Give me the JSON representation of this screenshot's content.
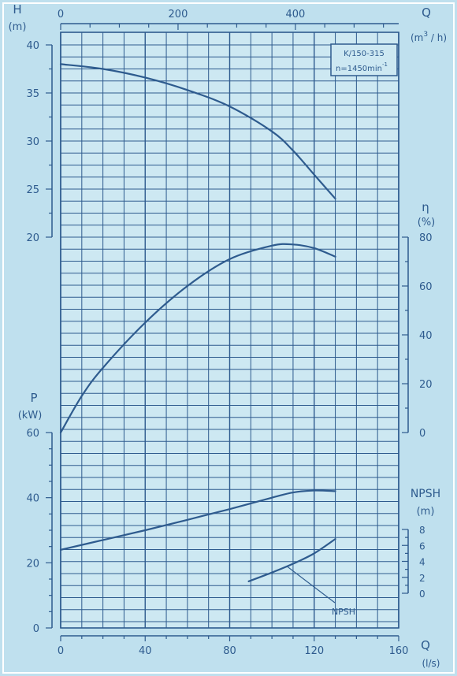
{
  "chart_data": {
    "type": "line",
    "model_label": "K/150-315",
    "speed_label": "n=1450min",
    "speed_exponent": "-1",
    "x_bottom": {
      "label": "Q",
      "unit": "(l/s)",
      "range": [
        0,
        160
      ],
      "ticks": [
        0,
        40,
        80,
        120,
        160
      ]
    },
    "x_top": {
      "label": "Q",
      "unit_prefix": "(m",
      "unit_exp": "3",
      "unit_suffix": "/ h)",
      "ticks": [
        0,
        200,
        400
      ]
    },
    "axes": {
      "head": {
        "label": "H",
        "unit": "(m)",
        "range": [
          20,
          40
        ],
        "ticks": [
          20,
          25,
          30,
          35,
          40
        ]
      },
      "efficiency": {
        "label": "η",
        "unit": "(%)",
        "range": [
          0,
          80
        ],
        "ticks": [
          0,
          20,
          40,
          60,
          80
        ]
      },
      "power": {
        "label": "P",
        "unit": "(kW)",
        "range": [
          0,
          60
        ],
        "ticks": [
          0,
          20,
          40,
          60
        ]
      },
      "npsh": {
        "label": "NPSH",
        "unit": "(m)",
        "range": [
          0,
          8
        ],
        "ticks": [
          0,
          2,
          4,
          6,
          8
        ]
      }
    },
    "grid": true,
    "series": [
      {
        "id": "head",
        "x": [
          0,
          20,
          40,
          60,
          80,
          100,
          110,
          120,
          130
        ],
        "y": [
          38,
          37.5,
          36.6,
          35.3,
          33.6,
          31,
          29,
          26.5,
          24
        ]
      },
      {
        "id": "efficiency",
        "x": [
          0,
          10,
          20,
          40,
          60,
          80,
          100,
          110,
          120,
          130
        ],
        "y": [
          0,
          15,
          26.5,
          45,
          60,
          71,
          76.5,
          77,
          75.5,
          72
        ]
      },
      {
        "id": "power",
        "x": [
          0,
          20,
          40,
          60,
          80,
          100,
          110,
          120,
          130
        ],
        "y": [
          24,
          27,
          30,
          33.2,
          36.5,
          40,
          41.6,
          42.2,
          42
        ]
      },
      {
        "id": "npsh",
        "name": "NPSH",
        "x": [
          89,
          100,
          110,
          120,
          130
        ],
        "y": [
          1.5,
          2.6,
          3.7,
          5,
          6.8
        ]
      }
    ]
  }
}
